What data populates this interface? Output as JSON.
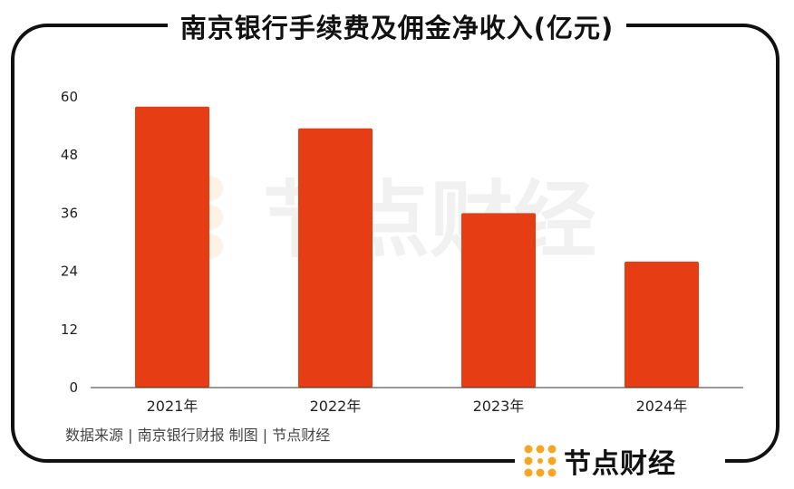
{
  "title": "南京银行手续费及佣金净收入(亿元)",
  "source": "数据来源 | 南京银行财报 制图 | 节点财经",
  "brand": {
    "name": "节点财经",
    "watermark": "节点财经",
    "logo_icon": "dot-grid-logo-icon"
  },
  "colors": {
    "bar": "#E63D14",
    "brand_orange": "#F5A623",
    "axis": "#333333"
  },
  "chart_data": {
    "type": "bar",
    "title": "南京银行手续费及佣金净收入(亿元)",
    "categories": [
      "2021年",
      "2022年",
      "2023年",
      "2024年"
    ],
    "values": [
      58,
      53.5,
      36,
      26
    ],
    "ylim": [
      0,
      60
    ],
    "yticks": [
      0,
      12,
      24,
      36,
      48,
      60
    ],
    "grid": false,
    "xlabel": "",
    "ylabel": ""
  }
}
